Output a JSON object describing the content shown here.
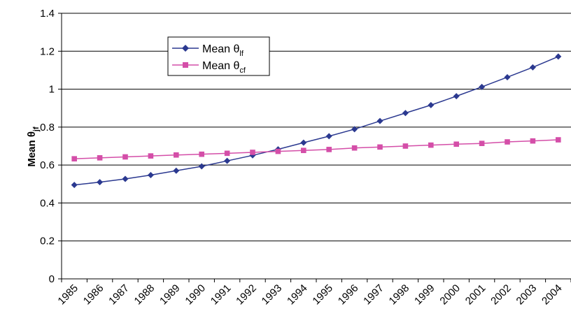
{
  "chart_data": {
    "type": "line",
    "title": "",
    "xlabel": "",
    "ylabel": {
      "main": "Mean θ",
      "sub": "jf"
    },
    "categories": [
      "1985",
      "1986",
      "1987",
      "1988",
      "1989",
      "1990",
      "1991",
      "1992",
      "1993",
      "1994",
      "1995",
      "1996",
      "1997",
      "1998",
      "1999",
      "2000",
      "2001",
      "2002",
      "2003",
      "2004"
    ],
    "ylim": [
      0,
      1.4
    ],
    "yticks": [
      "0",
      "0.2",
      "0.4",
      "0.6",
      "0.8",
      "1",
      "1.2",
      "1.4"
    ],
    "grid": true,
    "legend_position": "top-center",
    "series": [
      {
        "name": {
          "main": "Mean θ",
          "sub": "lf"
        },
        "color": "#2b3990",
        "marker": "diamond",
        "values": [
          0.495,
          0.51,
          0.527,
          0.547,
          0.57,
          0.593,
          0.622,
          0.651,
          0.683,
          0.718,
          0.752,
          0.789,
          0.832,
          0.874,
          0.916,
          0.963,
          1.012,
          1.063,
          1.115,
          1.172
        ]
      },
      {
        "name": {
          "main": "Mean θ",
          "sub": "cf"
        },
        "color": "#d44ea8",
        "marker": "square",
        "values": [
          0.633,
          0.638,
          0.643,
          0.648,
          0.653,
          0.657,
          0.662,
          0.667,
          0.672,
          0.677,
          0.682,
          0.69,
          0.695,
          0.7,
          0.705,
          0.71,
          0.714,
          0.722,
          0.727,
          0.733
        ]
      }
    ]
  }
}
